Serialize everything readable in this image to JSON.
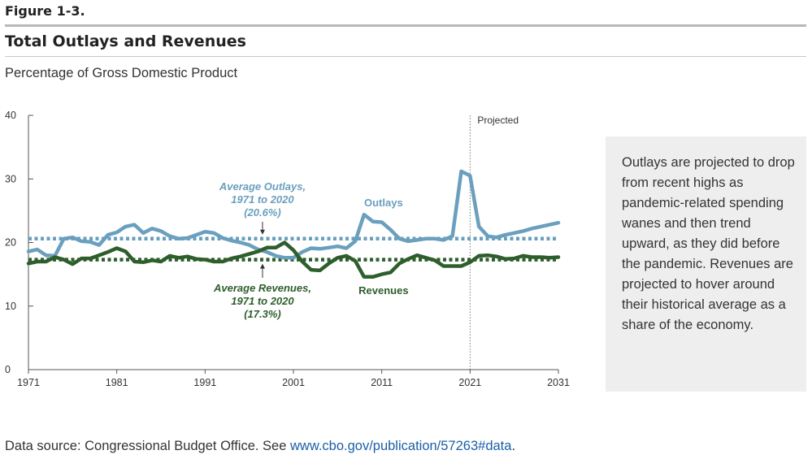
{
  "figure_label": "Figure 1-3.",
  "title": "Total Outlays and Revenues",
  "subtitle": "Percentage of Gross Domestic Product",
  "note": "Outlays are projected to drop from recent highs as pandemic-related spending wanes and then trend upward, as they did before the pandemic. Revenues are projected to hover around their historical average as a share of the economy.",
  "source": {
    "prefix": "Data source: Congressional Budget Office. See ",
    "link_text": "www.cbo.gov/publication/57263#data",
    "suffix": "."
  },
  "colors": {
    "outlays": "#6a9fbe",
    "revenues": "#2e5e2c",
    "axis": "#555555",
    "note_box": "#eeeeee"
  },
  "chart_data": {
    "type": "line",
    "title": "Total Outlays and Revenues",
    "ylabel": "Percentage of Gross Domestic Product",
    "xlim": [
      1971,
      2031
    ],
    "ylim": [
      0,
      40
    ],
    "x_ticks": [
      "1971",
      "1981",
      "1991",
      "2001",
      "2011",
      "2021",
      "2031"
    ],
    "y_ticks": [
      "0",
      "10",
      "20",
      "30",
      "40"
    ],
    "grid": false,
    "projected_marker": {
      "x": 2021,
      "label": "Projected"
    },
    "series": [
      {
        "name": "Outlays",
        "x": [
          1971,
          1972,
          1973,
          1974,
          1975,
          1976,
          1977,
          1978,
          1979,
          1980,
          1981,
          1982,
          1983,
          1984,
          1985,
          1986,
          1987,
          1988,
          1989,
          1990,
          1991,
          1992,
          1993,
          1994,
          1995,
          1996,
          1997,
          1998,
          1999,
          2000,
          2001,
          2002,
          2003,
          2004,
          2005,
          2006,
          2007,
          2008,
          2009,
          2010,
          2011,
          2012,
          2013,
          2014,
          2015,
          2016,
          2017,
          2018,
          2019,
          2020,
          2021,
          2022,
          2023,
          2024,
          2025,
          2026,
          2027,
          2028,
          2029,
          2030,
          2031
        ],
        "values": [
          18.6,
          18.9,
          18.0,
          17.9,
          20.6,
          20.8,
          20.2,
          20.1,
          19.6,
          21.2,
          21.6,
          22.5,
          22.8,
          21.5,
          22.2,
          21.8,
          21.0,
          20.6,
          20.7,
          21.2,
          21.7,
          21.5,
          20.7,
          20.3,
          20.0,
          19.6,
          18.9,
          18.5,
          17.9,
          17.6,
          17.6,
          18.5,
          19.1,
          19.0,
          19.2,
          19.4,
          19.1,
          20.2,
          24.4,
          23.3,
          23.2,
          22.0,
          20.6,
          20.2,
          20.4,
          20.6,
          20.6,
          20.4,
          21.0,
          31.2,
          30.5,
          22.5,
          21.0,
          20.8,
          21.2,
          21.5,
          21.8,
          22.2,
          22.5,
          22.8,
          23.1
        ]
      },
      {
        "name": "Revenues",
        "x": [
          1971,
          1972,
          1973,
          1974,
          1975,
          1976,
          1977,
          1978,
          1979,
          1980,
          1981,
          1982,
          1983,
          1984,
          1985,
          1986,
          1987,
          1988,
          1989,
          1990,
          1991,
          1992,
          1993,
          1994,
          1995,
          1996,
          1997,
          1998,
          1999,
          2000,
          2001,
          2002,
          2003,
          2004,
          2005,
          2006,
          2007,
          2008,
          2009,
          2010,
          2011,
          2012,
          2013,
          2014,
          2015,
          2016,
          2017,
          2018,
          2019,
          2020,
          2021,
          2022,
          2023,
          2024,
          2025,
          2026,
          2027,
          2028,
          2029,
          2030,
          2031
        ],
        "values": [
          16.7,
          17.0,
          17.0,
          17.7,
          17.3,
          16.6,
          17.5,
          17.5,
          18.0,
          18.5,
          19.1,
          18.6,
          17.0,
          16.9,
          17.2,
          17.0,
          17.9,
          17.6,
          17.8,
          17.4,
          17.3,
          17.0,
          17.0,
          17.5,
          17.8,
          18.2,
          18.6,
          19.2,
          19.2,
          20.0,
          18.8,
          17.0,
          15.7,
          15.6,
          16.7,
          17.6,
          17.9,
          17.1,
          14.6,
          14.6,
          15.0,
          15.3,
          16.7,
          17.4,
          18.0,
          17.6,
          17.2,
          16.3,
          16.3,
          16.3,
          16.9,
          17.9,
          18.0,
          17.8,
          17.4,
          17.5,
          17.9,
          17.7,
          17.7,
          17.6,
          17.7
        ]
      }
    ],
    "averages": [
      {
        "name": "Average Outlays",
        "value": 20.6,
        "label_lines": [
          "Average Outlays,",
          "1971 to 2020",
          "(20.6%)"
        ]
      },
      {
        "name": "Average Revenues",
        "value": 17.3,
        "label_lines": [
          "Average Revenues,",
          "1971 to 2020",
          "(17.3%)"
        ]
      }
    ],
    "series_labels": [
      "Outlays",
      "Revenues"
    ]
  }
}
